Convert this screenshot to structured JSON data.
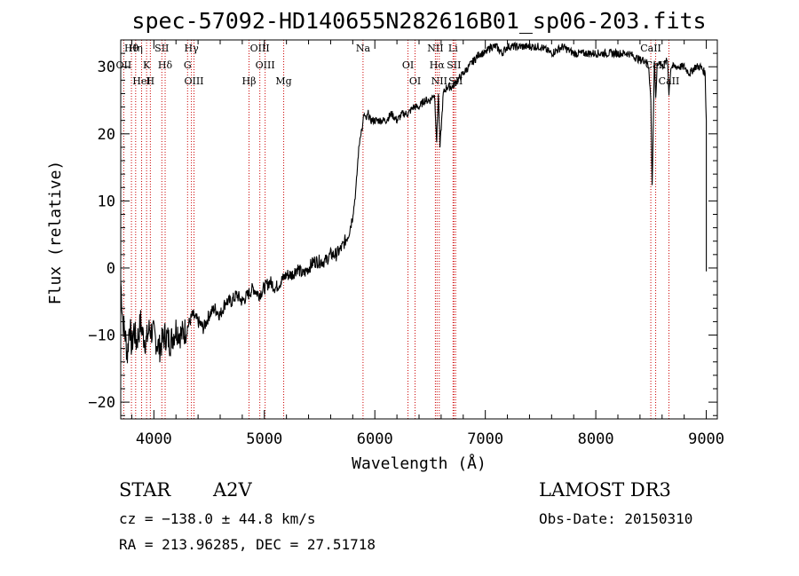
{
  "chart_data": {
    "type": "line",
    "title": "spec-57092-HD140655N282616B01_sp06-203.fits",
    "xlabel": "Wavelength (Å)",
    "ylabel": "Flux (relative)",
    "xlim": [
      3700,
      9100
    ],
    "ylim": [
      -22.5,
      34
    ],
    "x_ticks": [
      4000,
      5000,
      6000,
      7000,
      8000,
      9000
    ],
    "y_ticks": [
      -20,
      -10,
      0,
      10,
      20,
      30
    ],
    "x_tick_labels": [
      "4000",
      "5000",
      "6000",
      "7000",
      "8000",
      "9000"
    ],
    "y_tick_labels": [
      "−20",
      "−10",
      "0",
      "10",
      "20",
      "30"
    ],
    "grid": false,
    "series": [
      {
        "name": "spectrum",
        "x": [
          3700,
          3720,
          3740,
          3760,
          3780,
          3800,
          3820,
          3840,
          3860,
          3880,
          3900,
          3930,
          3960,
          4000,
          4050,
          4100,
          4150,
          4200,
          4250,
          4300,
          4350,
          4400,
          4450,
          4500,
          4550,
          4600,
          4650,
          4700,
          4750,
          4800,
          4850,
          4900,
          4950,
          5000,
          5050,
          5100,
          5150,
          5200,
          5250,
          5300,
          5350,
          5400,
          5450,
          5500,
          5550,
          5600,
          5650,
          5700,
          5730,
          5760,
          5790,
          5810,
          5830,
          5850,
          5870,
          5890,
          5900,
          5920,
          5940,
          5960,
          6000,
          6050,
          6100,
          6150,
          6200,
          6250,
          6300,
          6350,
          6400,
          6450,
          6500,
          6540,
          6560,
          6575,
          6590,
          6620,
          6650,
          6700,
          6750,
          6800,
          6850,
          6900,
          6950,
          7000,
          7050,
          7100,
          7150,
          7200,
          7300,
          7400,
          7500,
          7600,
          7700,
          7800,
          7900,
          8000,
          8100,
          8200,
          8300,
          8400,
          8450,
          8480,
          8498,
          8510,
          8530,
          8542,
          8555,
          8580,
          8600,
          8650,
          8662,
          8680,
          8700,
          8750,
          8800,
          8850,
          8900,
          8950,
          8990,
          9000
        ],
        "y": [
          -2,
          -8,
          -10,
          -13,
          -8,
          -12,
          -9,
          -11,
          -10,
          -8,
          -10,
          -11,
          -9,
          -10,
          -12,
          -10,
          -11,
          -9,
          -10,
          -9,
          -7,
          -8,
          -9,
          -7,
          -6,
          -7,
          -5,
          -5,
          -4,
          -5,
          -4,
          -3,
          -4,
          -3,
          -2,
          -3,
          -2,
          -1,
          -1,
          0,
          -1,
          0,
          1,
          1,
          1,
          2,
          2,
          3,
          4,
          5,
          7,
          9,
          12,
          17,
          20,
          21,
          23,
          22,
          23,
          22,
          22,
          22,
          22,
          23,
          22,
          23,
          23,
          24,
          24,
          25,
          25,
          26,
          19,
          26,
          18,
          26,
          27,
          27,
          28,
          29,
          30,
          31,
          32,
          32,
          33,
          33,
          32,
          33,
          33,
          33,
          33,
          32,
          33,
          32,
          32,
          32,
          32,
          32,
          32,
          31,
          31,
          30,
          25,
          12,
          31,
          25,
          30,
          31,
          30,
          31,
          26,
          30,
          30,
          30,
          30,
          29,
          30,
          30,
          29,
          22
        ]
      }
    ],
    "spectral_lines": [
      {
        "name": "Hθ",
        "x": 3797
      },
      {
        "name": "OII",
        "x": 3727
      },
      {
        "name": "HeI",
        "x": 3889
      },
      {
        "name": "Hη",
        "x": 3835
      },
      {
        "name": "K",
        "x": 3934
      },
      {
        "name": "H",
        "x": 3968
      },
      {
        "name": "SII",
        "x": 4072
      },
      {
        "name": "Hδ",
        "x": 4102
      },
      {
        "name": "OIII",
        "x": 4363
      },
      {
        "name": "Hγ",
        "x": 4340
      },
      {
        "name": "G",
        "x": 4305
      },
      {
        "name": "Hβ",
        "x": 4861
      },
      {
        "name": "OIII",
        "x": 4959
      },
      {
        "name": "OIII",
        "x": 5007
      },
      {
        "name": "Mg",
        "x": 5175
      },
      {
        "name": "Na",
        "x": 5893
      },
      {
        "name": "OI",
        "x": 6300
      },
      {
        "name": "OI",
        "x": 6364
      },
      {
        "name": "NII",
        "x": 6548
      },
      {
        "name": "Hα",
        "x": 6563
      },
      {
        "name": "NII",
        "x": 6583
      },
      {
        "name": "Li",
        "x": 6708
      },
      {
        "name": "SII",
        "x": 6716
      },
      {
        "name": "SII",
        "x": 6731
      },
      {
        "name": "CaII",
        "x": 8498
      },
      {
        "name": "CaII",
        "x": 8542
      },
      {
        "name": "CaII",
        "x": 8662
      }
    ]
  },
  "info": {
    "object_class": "STAR",
    "subclass": "A2V",
    "survey": "LAMOST DR3",
    "redshift": "cz = −138.0 ± 44.8 km/s",
    "obs_date": "Obs-Date: 20150310",
    "coords": "RA = 213.96285, DEC =  27.51718"
  },
  "colors": {
    "spectrum": "#000000",
    "line_markers": "#cc0000"
  }
}
